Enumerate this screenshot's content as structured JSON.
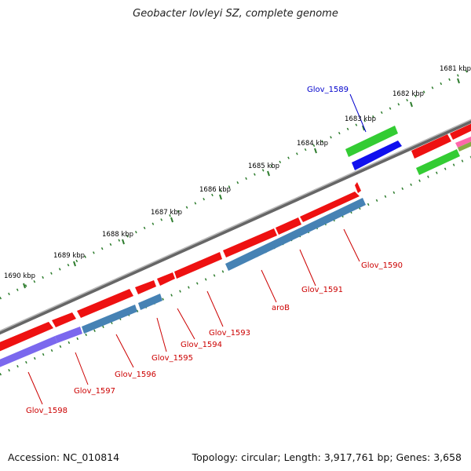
{
  "title": "Geobacter lovleyi SZ, complete genome",
  "accession": "Accession: NC_010814",
  "summary": "Topology: circular; Length: 3,917,761 bp; Genes: 3,658",
  "colors": {
    "backbone": "#888888",
    "tick": "#2e7d2e",
    "gene_label": "#cc0000",
    "highlight_label": "#0000cc",
    "cds_red": "#ee1111",
    "cds_blue": "#4682b4",
    "cds_purple": "#7b68ee",
    "cds_green": "#33cc33",
    "cds_darkblue": "#1010ee"
  },
  "scale_labels": [
    "1681 kbp",
    "1682 kbp",
    "1683 kbp",
    "1684 kbp",
    "1685 kbp",
    "1686 kbp",
    "1687 kbp",
    "1688 kbp",
    "1689 kbp",
    "1690 kbp"
  ],
  "gene_labels": [
    {
      "text": "Glov_1589",
      "kind": "highlight"
    },
    {
      "text": "Glov_1590",
      "kind": "normal"
    },
    {
      "text": "Glov_1591",
      "kind": "normal"
    },
    {
      "text": "aroB",
      "kind": "normal"
    },
    {
      "text": "Glov_1593",
      "kind": "normal"
    },
    {
      "text": "Glov_1594",
      "kind": "normal"
    },
    {
      "text": "Glov_1595",
      "kind": "normal"
    },
    {
      "text": "Glov_1596",
      "kind": "normal"
    },
    {
      "text": "Glov_1597",
      "kind": "normal"
    },
    {
      "text": "Glov_1598",
      "kind": "normal"
    }
  ]
}
